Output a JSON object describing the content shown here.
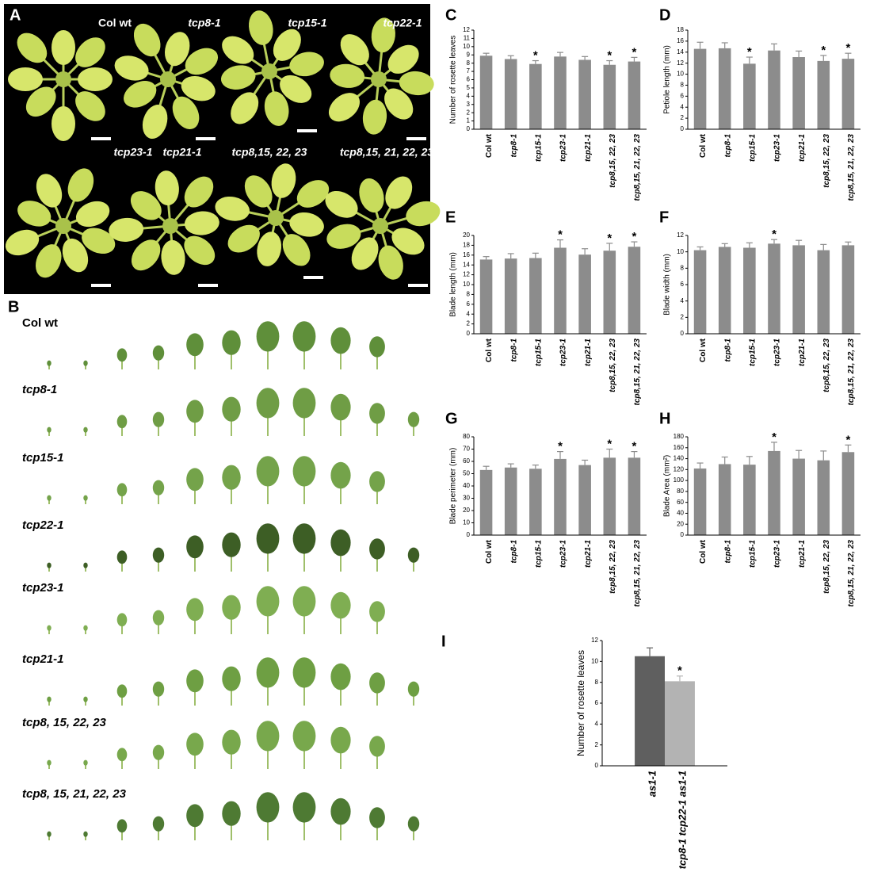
{
  "panel_a": {
    "letter": "A",
    "labels": [
      "Col wt",
      "tcp8-1",
      "tcp15-1",
      "tcp22-1",
      "tcp23-1",
      "tcp21-1",
      "tcp8,15, 22, 23",
      "tcp8,15, 21, 22, 23"
    ]
  },
  "panel_b": {
    "letter": "B",
    "labels": [
      "Col wt",
      "tcp8-1",
      "tcp15-1",
      "tcp22-1",
      "tcp23-1",
      "tcp21-1",
      "tcp8, 15, 22, 23",
      "tcp8, 15, 21, 22, 23"
    ]
  },
  "chart_data": [
    {
      "panel": "C",
      "type": "bar",
      "y_label": "Number of rosette leaves",
      "categories": [
        "Col wt",
        "tcp8-1",
        "tcp15-1",
        "tcp23-1",
        "tcp21-1",
        "tcp8,15, 22, 23",
        "tcp8,15, 21, 22, 23"
      ],
      "values": [
        8.9,
        8.5,
        7.9,
        8.8,
        8.4,
        7.8,
        8.2
      ],
      "errors": [
        0.3,
        0.4,
        0.4,
        0.5,
        0.4,
        0.5,
        0.5
      ],
      "significant": [
        false,
        false,
        true,
        false,
        false,
        true,
        true
      ],
      "marker": "*",
      "color": "#8c8c8c",
      "ylim": [
        0,
        12
      ],
      "yticks": [
        0,
        1,
        2,
        3,
        4,
        5,
        6,
        7,
        8,
        9,
        10,
        11,
        12
      ]
    },
    {
      "panel": "D",
      "type": "bar",
      "y_label": "Petiole length (mm)",
      "categories": [
        "Col wt",
        "tcp8-1",
        "tcp15-1",
        "tcp23-1",
        "tcp21-1",
        "tcp8,15, 22, 23",
        "tcp8,15, 21, 22, 23"
      ],
      "values": [
        14.6,
        14.7,
        11.9,
        14.3,
        13.1,
        12.4,
        12.8
      ],
      "errors": [
        1.2,
        1.0,
        1.2,
        1.2,
        1.1,
        1.0,
        1.0
      ],
      "significant": [
        false,
        false,
        true,
        false,
        false,
        true,
        true
      ],
      "marker": "*",
      "color": "#8c8c8c",
      "ylim": [
        0,
        18
      ],
      "yticks": [
        0,
        2,
        4,
        6,
        8,
        10,
        12,
        14,
        16,
        18
      ]
    },
    {
      "panel": "E",
      "type": "bar",
      "y_label": "Blade  length (mm)",
      "categories": [
        "Col wt",
        "tcp8-1",
        "tcp15-1",
        "tcp23-1",
        "tcp21-1",
        "tcp8,15, 22, 23",
        "tcp8,15, 21, 22, 23"
      ],
      "values": [
        15.1,
        15.3,
        15.4,
        17.5,
        16.1,
        16.9,
        17.7
      ],
      "errors": [
        0.6,
        1.0,
        1.0,
        1.6,
        1.2,
        1.5,
        1.0
      ],
      "significant": [
        false,
        false,
        false,
        true,
        false,
        true,
        true
      ],
      "marker": "*",
      "color": "#8c8c8c",
      "ylim": [
        0,
        20
      ],
      "yticks": [
        0,
        2,
        4,
        6,
        8,
        10,
        12,
        14,
        16,
        18,
        20
      ]
    },
    {
      "panel": "F",
      "type": "bar",
      "y_label": "Blade  width (mm)",
      "categories": [
        "Col wt",
        "tcp8-1",
        "tcp15-1",
        "tcp23-1",
        "tcp21-1",
        "tcp8,15, 22, 23",
        "tcp8,15, 21, 22, 23"
      ],
      "values": [
        10.2,
        10.6,
        10.5,
        11.0,
        10.8,
        10.2,
        10.8
      ],
      "errors": [
        0.4,
        0.4,
        0.6,
        0.5,
        0.6,
        0.7,
        0.4
      ],
      "significant": [
        false,
        false,
        false,
        true,
        false,
        false,
        false
      ],
      "marker": "*",
      "color": "#8c8c8c",
      "ylim": [
        0,
        12
      ],
      "yticks": [
        0,
        2,
        4,
        6,
        8,
        10,
        12
      ]
    },
    {
      "panel": "G",
      "type": "bar",
      "y_label": "Blade perimeter (mm)",
      "categories": [
        "Col wt",
        "tcp8-1",
        "tcp15-1",
        "tcp23-1",
        "tcp21-1",
        "tcp8,15, 22, 23",
        "tcp8,15, 21, 22, 23"
      ],
      "values": [
        53,
        55,
        54,
        62,
        57,
        63,
        63
      ],
      "errors": [
        3,
        3,
        3,
        6,
        4,
        7,
        5
      ],
      "significant": [
        false,
        false,
        false,
        true,
        false,
        true,
        true
      ],
      "marker": "*",
      "color": "#8c8c8c",
      "ylim": [
        0,
        80
      ],
      "yticks": [
        0,
        10,
        20,
        30,
        40,
        50,
        60,
        70,
        80
      ]
    },
    {
      "panel": "H",
      "type": "bar",
      "y_label": "Blade Area (mm²)",
      "categories": [
        "Col wt",
        "tcp8-1",
        "tcp15-1",
        "tcp23-1",
        "tcp21-1",
        "tcp8,15, 22, 23",
        "tcp8,15, 21, 22, 23"
      ],
      "values": [
        122,
        130,
        129,
        154,
        140,
        137,
        152
      ],
      "errors": [
        10,
        13,
        15,
        16,
        15,
        17,
        13
      ],
      "significant": [
        false,
        false,
        false,
        true,
        false,
        false,
        true
      ],
      "marker": "*",
      "color": "#8c8c8c",
      "ylim": [
        0,
        180
      ],
      "yticks": [
        0,
        20,
        40,
        60,
        80,
        100,
        120,
        140,
        160,
        180
      ]
    },
    {
      "panel": "I",
      "type": "bar",
      "y_label": "Number of rosette leaves",
      "categories": [
        "as1-1",
        "tcp8-1 tcp22-1 as1-1"
      ],
      "values": [
        10.5,
        8.1
      ],
      "errors": [
        0.8,
        0.5
      ],
      "significant": [
        false,
        true
      ],
      "marker": "*",
      "colors": [
        "#5f5f5f",
        "#b3b3b3"
      ],
      "ylim": [
        0,
        12
      ],
      "yticks": [
        0,
        2,
        4,
        6,
        8,
        10,
        12
      ]
    }
  ]
}
